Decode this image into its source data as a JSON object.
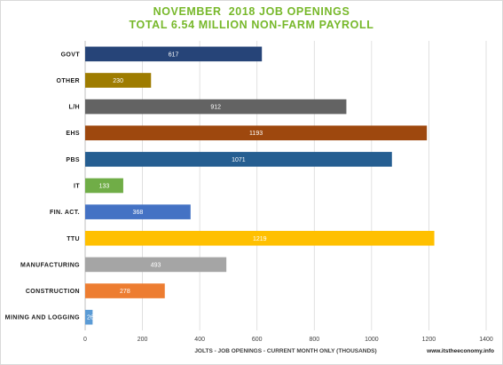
{
  "chart_data": {
    "type": "bar",
    "orientation": "horizontal",
    "title": "NOVEMBER  2018 JOB OPENINGS",
    "subtitle": "TOTAL 6.54 MILLION NON-FARM PAYROLL",
    "xlabel": "JOLTS - JOB OPENINGS - CURRENT MONTH ONLY (THOUSANDS)",
    "ylabel": "",
    "xlim": [
      0,
      1400
    ],
    "ticks": [
      0,
      200,
      400,
      600,
      800,
      1000,
      1200,
      1400
    ],
    "grid": true,
    "categories": [
      "GOVT",
      "OTHER",
      "L/H",
      "EHS",
      "PBS",
      "IT",
      "FIN. ACT.",
      "TTU",
      "MANUFACTURING",
      "CONSTRUCTION",
      "MINING AND LOGGING"
    ],
    "values": [
      617,
      230,
      912,
      1193,
      1071,
      133,
      368,
      1219,
      493,
      278,
      26
    ],
    "colors": [
      "#264478",
      "#9e7c00",
      "#636363",
      "#9e480e",
      "#255e91",
      "#70ad47",
      "#4472c4",
      "#ffc000",
      "#a5a5a5",
      "#ed7d31",
      "#5b9bd5"
    ]
  },
  "source": "www.itstheeconomy.info"
}
